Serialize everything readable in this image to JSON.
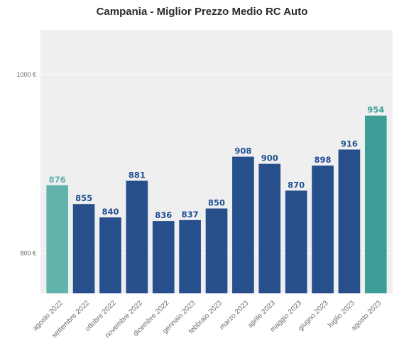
{
  "chart_data": {
    "type": "bar",
    "title": "Campania - Miglior Prezzo Medio RC Auto",
    "xlabel": "",
    "ylabel": "",
    "categories": [
      "agosto 2022",
      "settembre 2022",
      "ottobre 2022",
      "novembre 2022",
      "dicembre 2022",
      "gennaio 2023",
      "febbraio 2023",
      "marzo 2023",
      "aprile 2023",
      "maggio 2023",
      "giugno 2023",
      "luglio 2023",
      "agosto 2023"
    ],
    "values": [
      876,
      855,
      840,
      881,
      836,
      837,
      850,
      908,
      900,
      870,
      898,
      916,
      954
    ],
    "value_labels": [
      "876",
      "855",
      "840",
      "881",
      "836",
      "837",
      "850",
      "908",
      "900",
      "870",
      "898",
      "916",
      "954"
    ],
    "ylim": [
      755,
      1050
    ],
    "yticks": [
      800,
      1000
    ],
    "ytick_labels": [
      "800 €",
      "1000 €"
    ],
    "grid": true,
    "colors": {
      "bar_default": "#264f8c",
      "bar_first": "#63b3ad",
      "bar_last": "#3d9e98",
      "label_default": "#1f4f93",
      "label_first": "#5fb1ac",
      "label_last": "#3d9e98",
      "plot_background": "#efefef",
      "grid": "#ffffff"
    }
  }
}
